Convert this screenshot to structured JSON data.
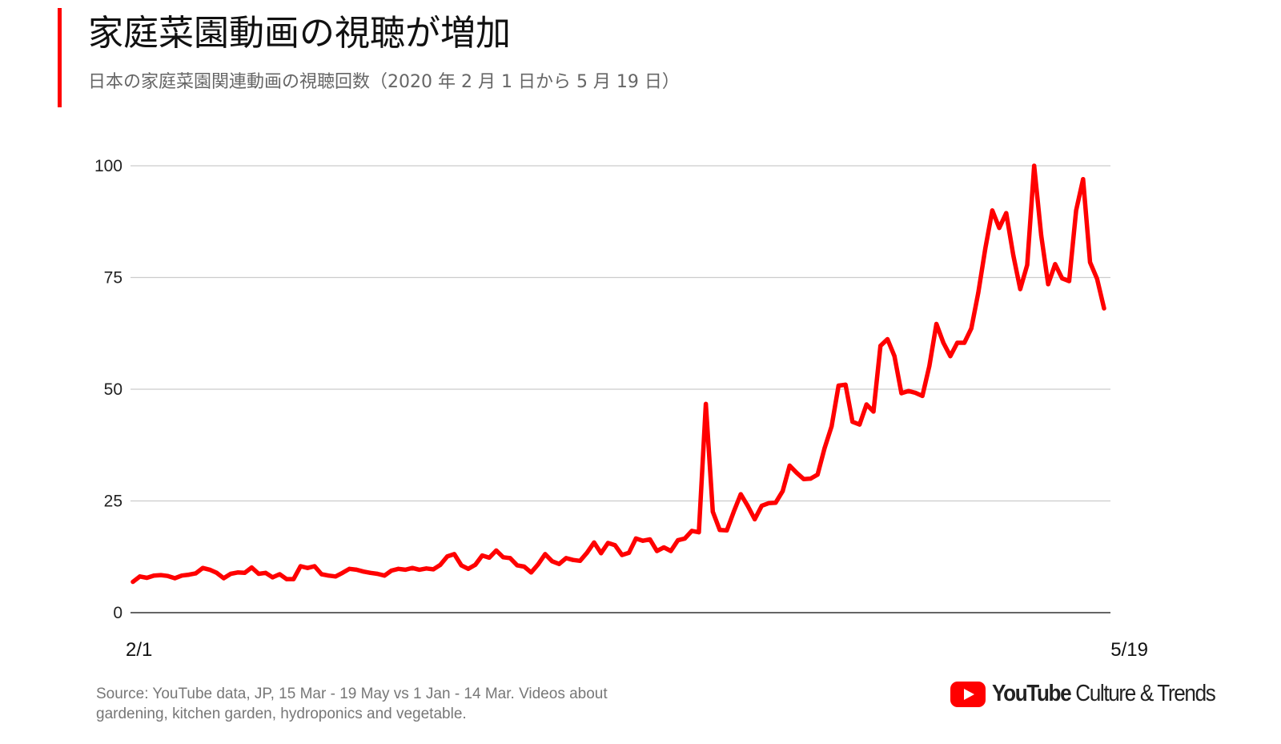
{
  "header": {
    "title": "家庭菜園動画の視聴が増加",
    "subtitle": "日本の家庭菜園関連動画の視聴回数（2020 年 2 月 1 日から 5 月 19 日）"
  },
  "footer": {
    "source": "Source: YouTube data, JP, 15 Mar - 19 May vs 1 Jan - 14 Mar. Videos about gardening, kitchen garden, hydroponics and vegetable.",
    "brand_strong": "YouTube",
    "brand_rest": " Culture & Trends",
    "brand_icon": "youtube-play-icon"
  },
  "colors": {
    "line": "#ff0000",
    "accent": "#ff0000",
    "grid": "#cccccc",
    "axis": "#333333"
  },
  "chart_data": {
    "type": "line",
    "title": "家庭菜園動画の視聴が増加",
    "subtitle": "日本の家庭菜園関連動画の視聴回数（2020 年 2 月 1 日から 5 月 19 日）",
    "xlabel": "",
    "ylabel": "",
    "x_tick_labels": [
      "2/1",
      "5/19"
    ],
    "y_ticks": [
      0,
      25,
      50,
      75,
      100
    ],
    "ylim": [
      0,
      100
    ],
    "grid": true,
    "legend": "none",
    "series": [
      {
        "values": [
          6.9,
          8.1,
          7.8,
          8.3,
          8.4,
          8.2,
          7.7,
          8.3,
          8.5,
          8.8,
          10.0,
          9.6,
          8.9,
          7.7,
          8.7,
          9.0,
          8.9,
          10.1,
          8.7,
          8.9,
          7.9,
          8.6,
          7.5,
          7.5,
          10.4,
          10.0,
          10.4,
          8.6,
          8.3,
          8.1,
          8.9,
          9.8,
          9.6,
          9.2,
          8.9,
          8.7,
          8.3,
          9.4,
          9.8,
          9.6,
          10.0,
          9.6,
          9.9,
          9.7,
          10.7,
          12.6,
          13.1,
          10.6,
          9.8,
          10.7,
          12.8,
          12.3,
          13.9,
          12.4,
          12.2,
          10.6,
          10.3,
          9.0,
          10.8,
          13.1,
          11.5,
          10.9,
          12.2,
          11.8,
          11.6,
          13.4,
          15.7,
          13.3,
          15.6,
          15.1,
          12.9,
          13.4,
          16.6,
          16.1,
          16.4,
          13.8,
          14.6,
          13.8,
          16.2,
          16.6,
          18.3,
          18.0,
          46.7,
          22.6,
          18.5,
          18.4,
          22.6,
          26.5,
          23.9,
          20.9,
          23.9,
          24.5,
          24.6,
          27.2,
          32.9,
          31.3,
          29.9,
          30.0,
          30.9,
          36.8,
          41.7,
          50.8,
          51.0,
          42.7,
          42.1,
          46.6,
          45.0,
          59.7,
          61.2,
          57.4,
          49.1,
          49.6,
          49.2,
          48.5,
          55.2,
          64.6,
          60.4,
          57.4,
          60.4,
          60.4,
          63.6,
          71.6,
          81.4,
          90.0,
          86.1,
          89.4,
          80.0,
          72.4,
          77.8,
          100.0,
          84.4,
          73.5,
          78.0,
          74.8,
          74.2,
          90.0,
          97.0,
          78.4,
          74.7,
          68.1
        ]
      }
    ]
  }
}
